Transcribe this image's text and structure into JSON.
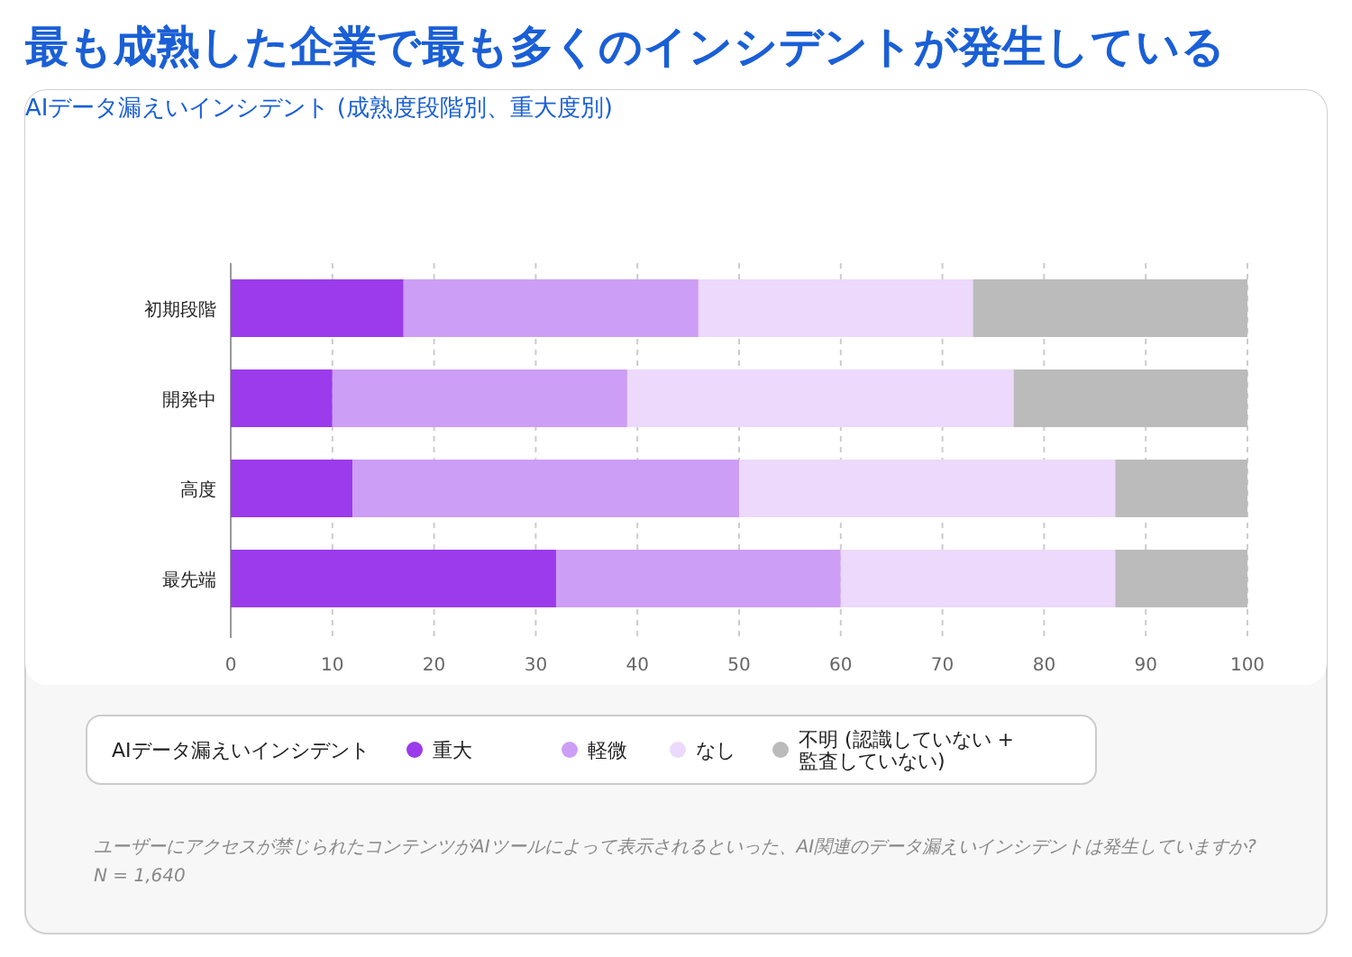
{
  "chart_data": {
    "type": "bar",
    "orientation": "horizontal",
    "stacked": true,
    "title": "最も成熟した企業で最も多くのインシデントが発生している",
    "subtitle": "AIデータ漏えいインシデント (成熟度段階別、重大度別)",
    "categories": [
      "初期段階",
      "開発中",
      "高度",
      "最先端"
    ],
    "series": [
      {
        "name": "重大",
        "color": "#9b3bec",
        "values": [
          17,
          10,
          12,
          32
        ]
      },
      {
        "name": "軽微",
        "color": "#cd9ef5",
        "values": [
          29,
          29,
          38,
          28
        ]
      },
      {
        "name": "なし",
        "color": "#ecd9fb",
        "values": [
          27,
          38,
          37,
          27
        ]
      },
      {
        "name": "不明 (認識していない + 監査していない)",
        "color": "#bbbbbb",
        "values": [
          27,
          23,
          13,
          13
        ]
      }
    ],
    "xlim": [
      0,
      100
    ],
    "xticks": [
      0,
      10,
      20,
      30,
      40,
      50,
      60,
      70,
      80,
      90,
      100
    ],
    "grid": "x",
    "legend": "bottom",
    "legend_title": "AIデータ漏えいインシデント",
    "annotations": [
      "ユーザーにアクセスが禁じられたコンテンツがAIツールによって表示されるといった、AI関連のデータ漏えいインシデントは発生していますか?",
      "N = 1,640"
    ]
  }
}
